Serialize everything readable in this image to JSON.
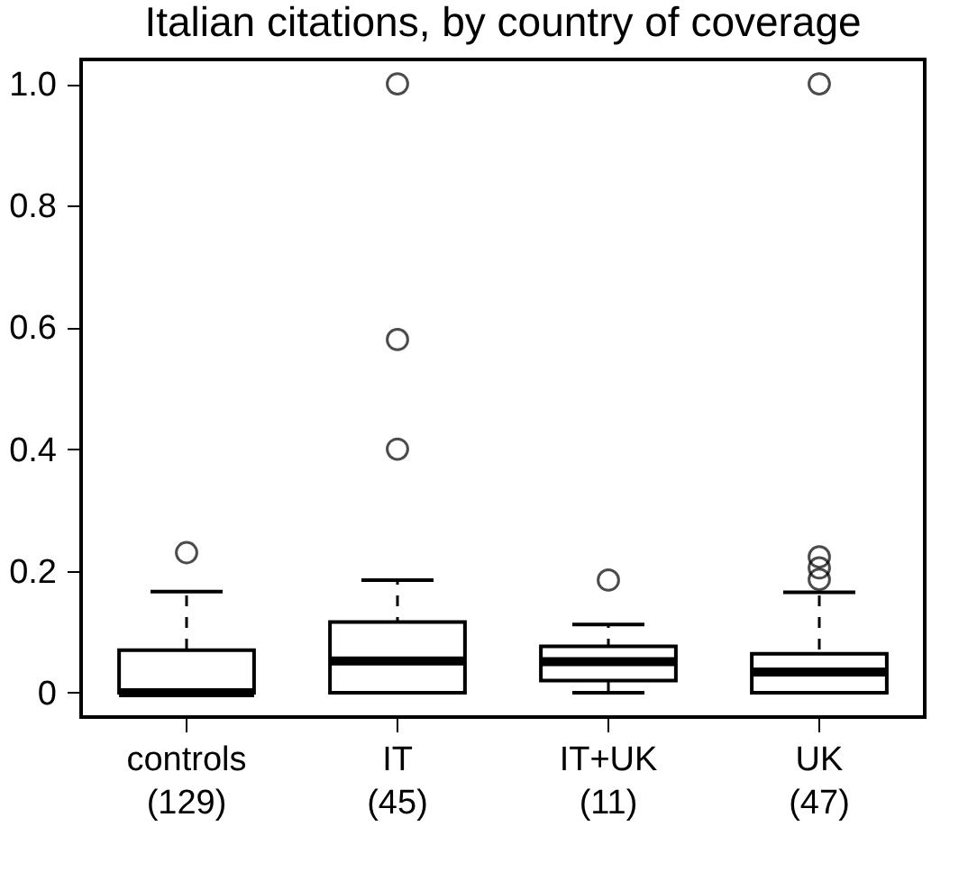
{
  "chart_data": {
    "type": "box",
    "title": "Italian citations, by country of coverage",
    "categories": [
      "controls\n(129)",
      "IT\n(45)",
      "IT+UK\n(11)",
      "UK\n(47)"
    ],
    "boxes": [
      {
        "low": 0,
        "q1": 0,
        "median": 0,
        "q3": 0.07,
        "high": 0.166,
        "outliers": [
          0.23
        ]
      },
      {
        "low": 0,
        "q1": 0,
        "median": 0.052,
        "q3": 0.116,
        "high": 0.185,
        "outliers": [
          0.4,
          0.58,
          1.0
        ]
      },
      {
        "low": 0,
        "q1": 0.02,
        "median": 0.051,
        "q3": 0.076,
        "high": 0.112,
        "outliers": [
          0.185
        ]
      },
      {
        "low": 0,
        "q1": 0,
        "median": 0.034,
        "q3": 0.064,
        "high": 0.165,
        "outliers": [
          0.186,
          0.205,
          0.223,
          1.0
        ]
      }
    ],
    "ylim": [
      -0.04,
      1.04
    ],
    "yticks": [
      0,
      0.2,
      0.4,
      0.6,
      0.8,
      {
        "value": 1,
        "label": "1.0"
      }
    ],
    "grid": false
  }
}
